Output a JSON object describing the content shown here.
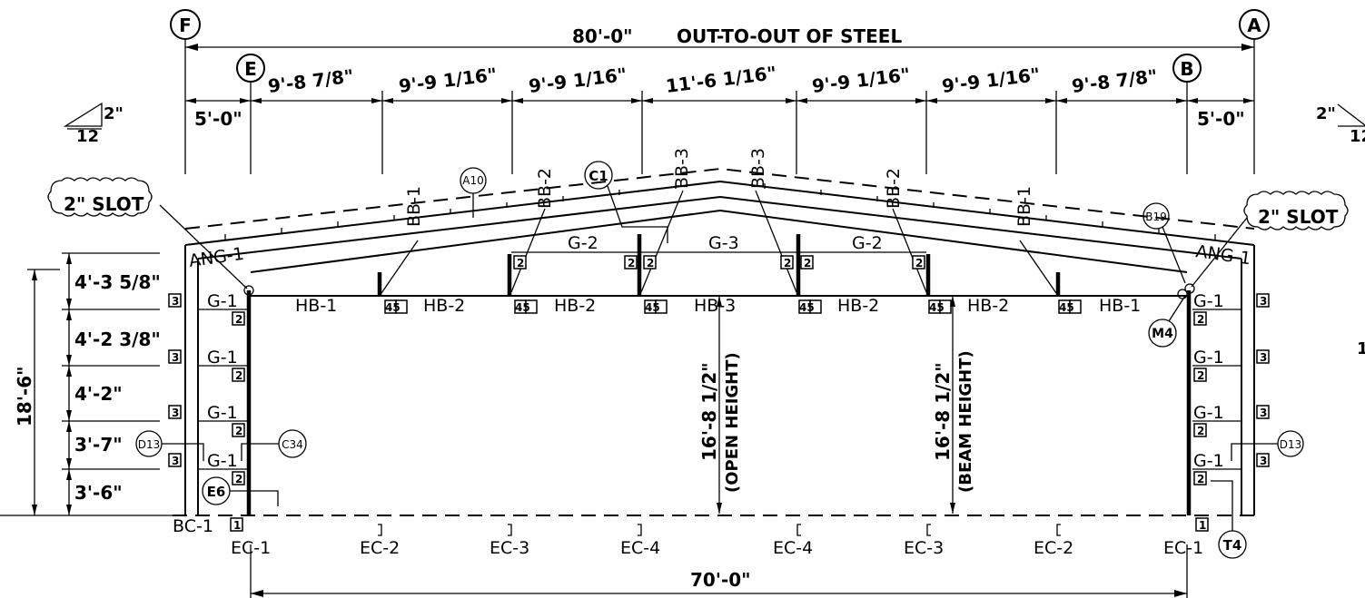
{
  "grid": {
    "F": "F",
    "A": "A",
    "E": "E",
    "B": "B"
  },
  "overall_dim": "80'-0\"",
  "overall_dim_note": "OUT-TO-OUT OF STEEL",
  "bays": [
    "9'-8 7/8\"",
    "9'-9 1/16\"",
    "9'-9 1/16\"",
    "11'-6 1/16\"",
    "9'-9 1/16\"",
    "9'-9 1/16\"",
    "9'-8 7/8\""
  ],
  "end_offset": "5'-0\"",
  "slope": {
    "rise": "2\"",
    "run": "12"
  },
  "slot": "2\" SLOT",
  "height_total": "18'-6\"",
  "girt_spacing": [
    "4'-3 5/8\"",
    "4'-2 3/8\"",
    "4'-2\"",
    "3'-7\"",
    "3'-6\""
  ],
  "ang": "ANG-1",
  "girt": "G-1",
  "beam_g": [
    "G-2",
    "G-3",
    "G-2"
  ],
  "headers": [
    "HB-1",
    "HB-2",
    "HB-2",
    "HB-3",
    "HB-2",
    "HB-2",
    "HB-1"
  ],
  "braces": [
    "BB-1",
    "BB-2",
    "BB-3",
    "BB-3",
    "BB-2",
    "BB-1"
  ],
  "open_height": "16'-8 1/2\"",
  "open_height_note": "(OPEN HEIGHT)",
  "beam_height": "16'-8 1/2\"",
  "beam_height_note": "(BEAM HEIGHT)",
  "base": "BC-1",
  "columns": [
    "EC-1",
    "EC-2",
    "EC-3",
    "EC-4",
    "EC-4",
    "EC-3",
    "EC-2",
    "EC-1"
  ],
  "bottom_dim": "70'-0\"",
  "details": {
    "A10": "A10",
    "C1": "C1",
    "B19": "B19",
    "M4": "M4",
    "D13": "D13",
    "C34": "C34",
    "E6": "E6",
    "T4": "T4"
  },
  "marks": {
    "m1": "1",
    "m2": "2",
    "m3": "3",
    "m45": "45"
  },
  "edge_num": "1"
}
